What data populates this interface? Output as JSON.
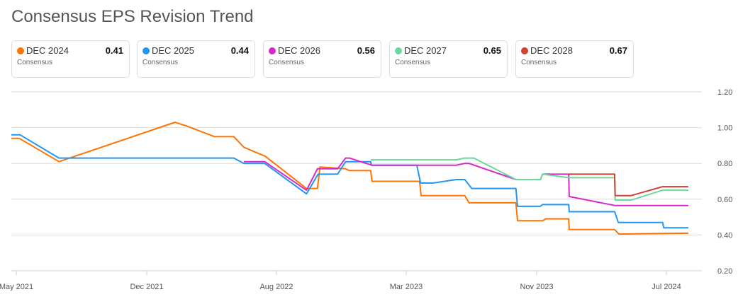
{
  "title": "Consensus EPS Revision Trend",
  "cards": [
    {
      "name": "DEC 2024",
      "value": "0.41",
      "sub": "Consensus",
      "color": "#ff7300"
    },
    {
      "name": "DEC 2025",
      "value": "0.44",
      "sub": "Consensus",
      "color": "#2196f3"
    },
    {
      "name": "DEC 2026",
      "value": "0.56",
      "sub": "Consensus",
      "color": "#d42ac7"
    },
    {
      "name": "DEC 2027",
      "value": "0.65",
      "sub": "Consensus",
      "color": "#6bd89e"
    },
    {
      "name": "DEC 2028",
      "value": "0.67",
      "sub": "Consensus",
      "color": "#d23f31"
    }
  ],
  "chart_data": {
    "type": "line",
    "title": "Consensus EPS Revision Trend",
    "ylim": [
      0.2,
      1.2
    ],
    "yticks": [
      "1.20",
      "1.00",
      "0.80",
      "0.60",
      "0.40",
      "0.20"
    ],
    "xticks": [
      "May 2021",
      "Dec 2021",
      "Aug 2022",
      "Mar 2023",
      "Nov 2023",
      "Jul 2024"
    ],
    "grid": true,
    "y_axis_side": "right",
    "series": [
      {
        "name": "DEC 2024",
        "color": "#ff7300",
        "points": [
          [
            "2021-04-23",
            0.94
          ],
          [
            "2021-05-06",
            0.94
          ],
          [
            "2021-07-10",
            0.81
          ],
          [
            "2022-01-23",
            1.03
          ],
          [
            "2022-02-13",
            1.01
          ],
          [
            "2022-04-07",
            0.95
          ],
          [
            "2022-05-13",
            0.95
          ],
          [
            "2022-06-01",
            0.89
          ],
          [
            "2022-07-11",
            0.84
          ],
          [
            "2022-09-19",
            0.66
          ],
          [
            "2022-10-07",
            0.66
          ],
          [
            "2022-10-11",
            0.78
          ],
          [
            "2022-11-22",
            0.77
          ],
          [
            "2022-11-28",
            0.76
          ],
          [
            "2023-01-02",
            0.76
          ],
          [
            "2023-01-04",
            0.7
          ],
          [
            "2023-03-26",
            0.7
          ],
          [
            "2023-03-29",
            0.62
          ],
          [
            "2023-06-19",
            0.62
          ],
          [
            "2023-06-27",
            0.58
          ],
          [
            "2023-09-23",
            0.58
          ],
          [
            "2023-09-26",
            0.48
          ],
          [
            "2023-11-12",
            0.48
          ],
          [
            "2023-11-18",
            0.49
          ],
          [
            "2023-12-31",
            0.49
          ],
          [
            "2024-01-01",
            0.43
          ],
          [
            "2024-03-26",
            0.43
          ],
          [
            "2024-04-03",
            0.405
          ],
          [
            "2024-08-11",
            0.41
          ]
        ]
      },
      {
        "name": "DEC 2025",
        "color": "#2196f3",
        "points": [
          [
            "2021-04-23",
            0.96
          ],
          [
            "2021-05-07",
            0.96
          ],
          [
            "2021-07-10",
            0.83
          ],
          [
            "2022-05-13",
            0.83
          ],
          [
            "2022-06-01",
            0.8
          ],
          [
            "2022-07-10",
            0.8
          ],
          [
            "2022-09-19",
            0.63
          ],
          [
            "2022-10-08",
            0.74
          ],
          [
            "2022-11-09",
            0.74
          ],
          [
            "2022-11-22",
            0.81
          ],
          [
            "2023-01-02",
            0.81
          ],
          [
            "2023-01-03",
            0.79
          ],
          [
            "2023-03-21",
            0.79
          ],
          [
            "2023-03-28",
            0.69
          ],
          [
            "2023-04-20",
            0.69
          ],
          [
            "2023-06-03",
            0.71
          ],
          [
            "2023-06-19",
            0.71
          ],
          [
            "2023-06-27",
            0.68
          ],
          [
            "2023-07-02",
            0.66
          ],
          [
            "2023-09-23",
            0.66
          ],
          [
            "2023-09-26",
            0.56
          ],
          [
            "2023-11-08",
            0.56
          ],
          [
            "2023-11-12",
            0.57
          ],
          [
            "2023-12-31",
            0.57
          ],
          [
            "2024-01-01",
            0.53
          ],
          [
            "2024-03-26",
            0.53
          ],
          [
            "2024-04-02",
            0.47
          ],
          [
            "2024-06-24",
            0.47
          ],
          [
            "2024-06-26",
            0.44
          ],
          [
            "2024-08-11",
            0.44
          ]
        ]
      },
      {
        "name": "DEC 2026",
        "color": "#d42ac7",
        "points": [
          [
            "2022-06-01",
            0.81
          ],
          [
            "2022-07-10",
            0.81
          ],
          [
            "2022-09-19",
            0.65
          ],
          [
            "2022-10-07",
            0.77
          ],
          [
            "2022-11-09",
            0.77
          ],
          [
            "2022-11-22",
            0.83
          ],
          [
            "2022-11-28",
            0.83
          ],
          [
            "2023-01-04",
            0.79
          ],
          [
            "2023-06-03",
            0.79
          ],
          [
            "2023-06-19",
            0.8
          ],
          [
            "2023-06-27",
            0.8
          ],
          [
            "2023-09-23",
            0.71
          ],
          [
            "2023-11-08",
            0.71
          ],
          [
            "2023-11-12",
            0.74
          ],
          [
            "2023-12-31",
            0.74
          ],
          [
            "2024-01-01",
            0.615
          ],
          [
            "2024-03-26",
            0.565
          ],
          [
            "2024-08-11",
            0.565
          ]
        ]
      },
      {
        "name": "DEC 2027",
        "color": "#6bd89e",
        "points": [
          [
            "2023-01-02",
            0.82
          ],
          [
            "2023-06-03",
            0.82
          ],
          [
            "2023-06-19",
            0.83
          ],
          [
            "2023-07-06",
            0.83
          ],
          [
            "2023-09-23",
            0.71
          ],
          [
            "2023-11-08",
            0.71
          ],
          [
            "2023-11-12",
            0.74
          ],
          [
            "2023-12-31",
            0.72
          ],
          [
            "2024-03-26",
            0.72
          ],
          [
            "2024-03-27",
            0.595
          ],
          [
            "2024-04-26",
            0.595
          ],
          [
            "2024-06-24",
            0.65
          ],
          [
            "2024-08-11",
            0.65
          ]
        ]
      },
      {
        "name": "DEC 2028",
        "color": "#d23f31",
        "points": [
          [
            "2023-12-31",
            0.74
          ],
          [
            "2024-03-26",
            0.74
          ],
          [
            "2024-03-27",
            0.62
          ],
          [
            "2024-04-26",
            0.62
          ],
          [
            "2024-06-24",
            0.67
          ],
          [
            "2024-08-11",
            0.67
          ]
        ]
      }
    ]
  }
}
